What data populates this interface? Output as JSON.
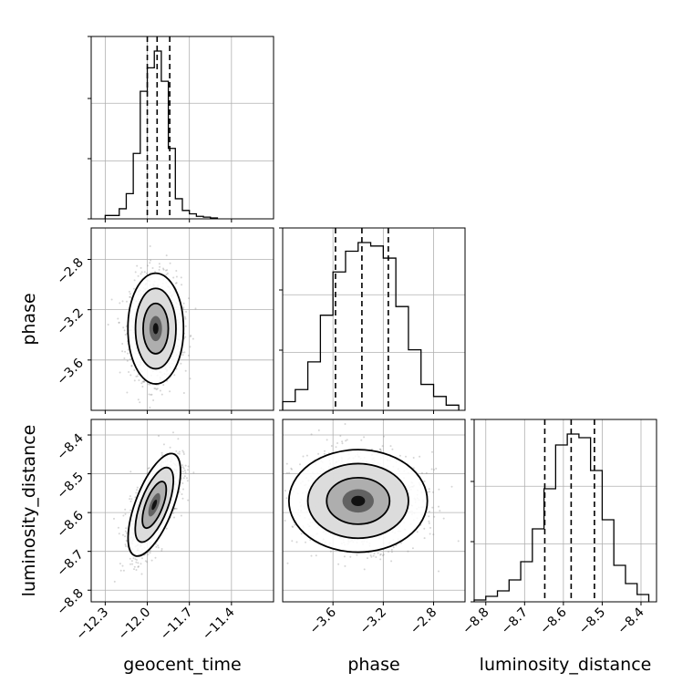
{
  "chart_data": {
    "type": "corner",
    "parameters": [
      "geocent_time",
      "phase",
      "luminosity_distance"
    ],
    "axis_labels": {
      "x": [
        "geocent_time",
        "phase",
        "luminosity_distance"
      ],
      "y_row1": "phase",
      "y_row2": "luminosity_distance"
    },
    "ranges": {
      "geocent_time": [
        -12.4,
        -11.1
      ],
      "phase": [
        -4.0,
        -2.55
      ],
      "luminosity_distance": [
        -8.83,
        -8.36
      ]
    },
    "ticks": {
      "geocent_time": {
        "values": [
          -12.3,
          -12.0,
          -11.7,
          -11.4
        ],
        "labels": [
          "−12.3",
          "−12.0",
          "−11.7",
          "−11.4"
        ]
      },
      "phase": {
        "values": [
          -3.6,
          -3.2,
          -2.8
        ],
        "labels": [
          "−3.6",
          "−3.2",
          "−2.8"
        ]
      },
      "luminosity_distance": {
        "values": [
          -8.8,
          -8.7,
          -8.6,
          -8.5,
          -8.4
        ],
        "labels": [
          "−8.8",
          "−8.7",
          "−8.6",
          "−8.5",
          "−8.4"
        ]
      }
    },
    "quantiles": {
      "geocent_time": [
        -12.0,
        -11.93,
        -11.84
      ],
      "phase": [
        -3.58,
        -3.37,
        -3.16
      ],
      "luminosity_distance": [
        -8.648,
        -8.58,
        -8.52
      ]
    },
    "histograms": {
      "geocent_time": {
        "bin_edges": [
          -12.3,
          -12.2,
          -12.15,
          -12.1,
          -12.05,
          -12.0,
          -11.95,
          -11.9,
          -11.85,
          -11.8,
          -11.75,
          -11.7,
          -11.65,
          -11.6,
          -11.55,
          -11.5
        ],
        "counts": [
          0.02,
          0.06,
          0.15,
          0.39,
          0.76,
          0.9,
          1.0,
          0.82,
          0.42,
          0.12,
          0.05,
          0.03,
          0.015,
          0.01,
          0.005
        ]
      },
      "phase": {
        "bin_edges": [
          -4.0,
          -3.9,
          -3.8,
          -3.7,
          -3.6,
          -3.5,
          -3.4,
          -3.3,
          -3.2,
          -3.1,
          -3.0,
          -2.9,
          -2.8,
          -2.7,
          -2.6
        ],
        "counts": [
          0.05,
          0.12,
          0.28,
          0.55,
          0.8,
          0.92,
          0.97,
          0.95,
          0.88,
          0.6,
          0.35,
          0.15,
          0.08,
          0.03
        ]
      },
      "luminosity_distance": {
        "bin_edges": [
          -8.83,
          -8.8,
          -8.77,
          -8.74,
          -8.71,
          -8.68,
          -8.65,
          -8.62,
          -8.59,
          -8.56,
          -8.53,
          -8.5,
          -8.47,
          -8.44,
          -8.41,
          -8.38
        ],
        "counts": [
          0.01,
          0.03,
          0.06,
          0.12,
          0.22,
          0.4,
          0.62,
          0.86,
          0.92,
          0.9,
          0.72,
          0.45,
          0.2,
          0.1,
          0.04
        ]
      }
    },
    "joint": {
      "phase_vs_geocent_time": {
        "mean": [
          -11.94,
          -3.35
        ],
        "sigma": [
          0.09,
          0.2
        ],
        "corr": 0.0
      },
      "luminosity_distance_vs_geocent_time": {
        "mean": [
          -11.95,
          -8.58
        ],
        "sigma": [
          0.085,
          0.06
        ],
        "corr": 0.65
      },
      "luminosity_distance_vs_phase": {
        "mean": [
          -3.4,
          -8.57
        ],
        "sigma": [
          0.25,
          0.06
        ],
        "corr": 0.0
      }
    },
    "grid": true,
    "legend": "none"
  }
}
